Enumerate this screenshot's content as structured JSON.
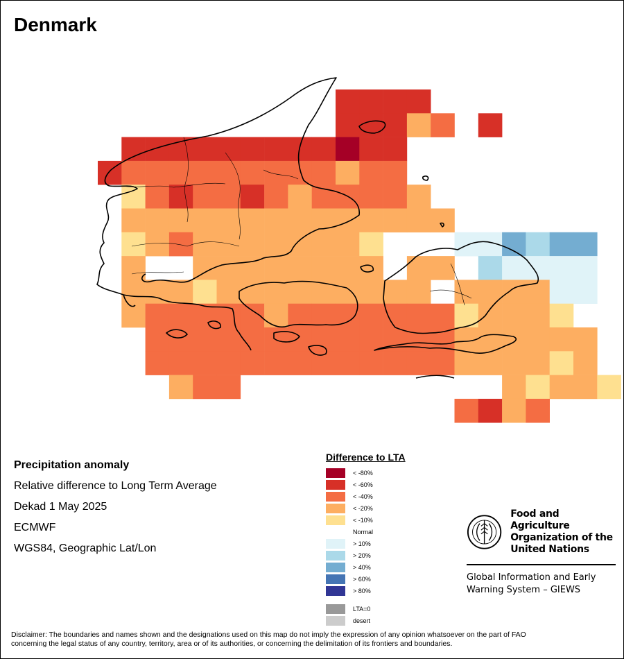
{
  "title": "Denmark",
  "info": {
    "heading": "Precipitation anomaly",
    "line1": "Relative difference to Long Term Average",
    "line2": "Dekad 1 May 2025",
    "line3": "ECMWF",
    "line4": "WGS84, Geographic Lat/Lon"
  },
  "legend": {
    "title": "Difference to LTA",
    "items": [
      {
        "label": "< -80%",
        "color": "#a50026"
      },
      {
        "label": "< -60%",
        "color": "#d73027"
      },
      {
        "label": "< -40%",
        "color": "#f46d43"
      },
      {
        "label": "< -20%",
        "color": "#fdae61"
      },
      {
        "label": "< -10%",
        "color": "#fee090"
      },
      {
        "label": "Normal",
        "color": "#ffffff"
      },
      {
        "label": "> 10%",
        "color": "#e0f3f8"
      },
      {
        "label": "> 20%",
        "color": "#abd9e9"
      },
      {
        "label": "> 40%",
        "color": "#74add1"
      },
      {
        "label": "> 60%",
        "color": "#4575b4"
      },
      {
        "label": "> 80%",
        "color": "#313695"
      }
    ],
    "extra": [
      {
        "label": "LTA=0",
        "color": "#999999"
      },
      {
        "label": "desert",
        "color": "#cccccc"
      }
    ]
  },
  "fao": {
    "name_line1": "Food and Agriculture",
    "name_line2": "Organization of the",
    "name_line3": "United Nations",
    "logo_text": "FAO",
    "motto": "FIAT PANIS",
    "giews_line1": "Global Information and Early",
    "giews_line2": "Warning System – GIEWS"
  },
  "disclaimer_line1": "Disclaimer: The boundaries and names shown and the designations used on this map do not imply the expression of any opinion whatsoever on the part of FAO",
  "disclaimer_line2": "concerning the legal status of any country, territory, area or of its authorities, or concerning the delimitation of its frontiers and boundaries.",
  "anomaly_grid": {
    "class_colors": {
      "r80": "#a50026",
      "r60": "#d73027",
      "r40": "#f46d43",
      "r20": "#fdae61",
      "r10": "#fee090",
      "p10": "#e0f3f8",
      "p20": "#abd9e9",
      "p40": "#74add1"
    },
    "cells": [
      [
        0,
        10,
        "r60"
      ],
      [
        0,
        11,
        "r60"
      ],
      [
        0,
        12,
        "r60"
      ],
      [
        0,
        13,
        "r60"
      ],
      [
        1,
        10,
        "r60"
      ],
      [
        1,
        11,
        "r60"
      ],
      [
        1,
        12,
        "r60"
      ],
      [
        1,
        13,
        "r20"
      ],
      [
        1,
        14,
        "r40"
      ],
      [
        1,
        16,
        "r60"
      ],
      [
        2,
        1,
        "r60"
      ],
      [
        2,
        2,
        "r60"
      ],
      [
        2,
        3,
        "r60"
      ],
      [
        2,
        4,
        "r60"
      ],
      [
        2,
        5,
        "r60"
      ],
      [
        2,
        6,
        "r60"
      ],
      [
        2,
        7,
        "r60"
      ],
      [
        2,
        8,
        "r60"
      ],
      [
        2,
        9,
        "r60"
      ],
      [
        2,
        10,
        "r80"
      ],
      [
        2,
        11,
        "r60"
      ],
      [
        2,
        12,
        "r60"
      ],
      [
        3,
        0,
        "r60"
      ],
      [
        3,
        1,
        "r40"
      ],
      [
        3,
        2,
        "r40"
      ],
      [
        3,
        3,
        "r40"
      ],
      [
        3,
        4,
        "r40"
      ],
      [
        3,
        5,
        "r40"
      ],
      [
        3,
        6,
        "r40"
      ],
      [
        3,
        7,
        "r40"
      ],
      [
        3,
        8,
        "r40"
      ],
      [
        3,
        9,
        "r40"
      ],
      [
        3,
        10,
        "r20"
      ],
      [
        3,
        11,
        "r40"
      ],
      [
        3,
        12,
        "r40"
      ],
      [
        4,
        1,
        "r10"
      ],
      [
        4,
        2,
        "r40"
      ],
      [
        4,
        3,
        "r60"
      ],
      [
        4,
        4,
        "r40"
      ],
      [
        4,
        5,
        "r40"
      ],
      [
        4,
        6,
        "r60"
      ],
      [
        4,
        7,
        "r40"
      ],
      [
        4,
        8,
        "r20"
      ],
      [
        4,
        9,
        "r40"
      ],
      [
        4,
        10,
        "r40"
      ],
      [
        4,
        11,
        "r40"
      ],
      [
        4,
        12,
        "r40"
      ],
      [
        4,
        13,
        "r20"
      ],
      [
        5,
        1,
        "r20"
      ],
      [
        5,
        2,
        "r20"
      ],
      [
        5,
        3,
        "r20"
      ],
      [
        5,
        4,
        "r20"
      ],
      [
        5,
        5,
        "r20"
      ],
      [
        5,
        6,
        "r20"
      ],
      [
        5,
        7,
        "r20"
      ],
      [
        5,
        8,
        "r20"
      ],
      [
        5,
        9,
        "r20"
      ],
      [
        5,
        10,
        "r20"
      ],
      [
        5,
        11,
        "r20"
      ],
      [
        5,
        12,
        "r20"
      ],
      [
        5,
        13,
        "r20"
      ],
      [
        5,
        14,
        "r20"
      ],
      [
        6,
        1,
        "r10"
      ],
      [
        6,
        2,
        "r20"
      ],
      [
        6,
        3,
        "r40"
      ],
      [
        6,
        4,
        "r20"
      ],
      [
        6,
        5,
        "r20"
      ],
      [
        6,
        6,
        "r20"
      ],
      [
        6,
        7,
        "r20"
      ],
      [
        6,
        8,
        "r20"
      ],
      [
        6,
        9,
        "r20"
      ],
      [
        6,
        10,
        "r20"
      ],
      [
        6,
        11,
        "r10"
      ],
      [
        6,
        15,
        "p10"
      ],
      [
        6,
        16,
        "p10"
      ],
      [
        6,
        17,
        "p40"
      ],
      [
        6,
        18,
        "p20"
      ],
      [
        6,
        19,
        "p40"
      ],
      [
        6,
        20,
        "p40"
      ],
      [
        7,
        1,
        "r20"
      ],
      [
        7,
        4,
        "r20"
      ],
      [
        7,
        5,
        "r20"
      ],
      [
        7,
        6,
        "r20"
      ],
      [
        7,
        7,
        "r20"
      ],
      [
        7,
        8,
        "r20"
      ],
      [
        7,
        9,
        "r20"
      ],
      [
        7,
        10,
        "r20"
      ],
      [
        7,
        11,
        "r20"
      ],
      [
        7,
        13,
        "r20"
      ],
      [
        7,
        14,
        "r20"
      ],
      [
        7,
        16,
        "p20"
      ],
      [
        7,
        17,
        "p10"
      ],
      [
        7,
        18,
        "p10"
      ],
      [
        7,
        19,
        "p10"
      ],
      [
        7,
        20,
        "p10"
      ],
      [
        8,
        1,
        "r20"
      ],
      [
        8,
        2,
        "r20"
      ],
      [
        8,
        3,
        "r20"
      ],
      [
        8,
        4,
        "r10"
      ],
      [
        8,
        5,
        "r20"
      ],
      [
        8,
        6,
        "r20"
      ],
      [
        8,
        7,
        "r20"
      ],
      [
        8,
        8,
        "r20"
      ],
      [
        8,
        9,
        "r20"
      ],
      [
        8,
        10,
        "r20"
      ],
      [
        8,
        11,
        "r20"
      ],
      [
        8,
        12,
        "r20"
      ],
      [
        8,
        13,
        "r20"
      ],
      [
        8,
        15,
        "r20"
      ],
      [
        8,
        16,
        "r20"
      ],
      [
        8,
        17,
        "r20"
      ],
      [
        8,
        18,
        "r20"
      ],
      [
        8,
        19,
        "p10"
      ],
      [
        8,
        20,
        "p10"
      ],
      [
        9,
        1,
        "r20"
      ],
      [
        9,
        2,
        "r40"
      ],
      [
        9,
        3,
        "r40"
      ],
      [
        9,
        4,
        "r40"
      ],
      [
        9,
        5,
        "r40"
      ],
      [
        9,
        6,
        "r40"
      ],
      [
        9,
        7,
        "r20"
      ],
      [
        9,
        8,
        "r40"
      ],
      [
        9,
        9,
        "r40"
      ],
      [
        9,
        10,
        "r40"
      ],
      [
        9,
        11,
        "r40"
      ],
      [
        9,
        12,
        "r40"
      ],
      [
        9,
        13,
        "r40"
      ],
      [
        9,
        14,
        "r40"
      ],
      [
        9,
        15,
        "r10"
      ],
      [
        9,
        16,
        "r20"
      ],
      [
        9,
        17,
        "r20"
      ],
      [
        9,
        18,
        "r20"
      ],
      [
        9,
        19,
        "r10"
      ],
      [
        10,
        2,
        "r40"
      ],
      [
        10,
        3,
        "r40"
      ],
      [
        10,
        4,
        "r40"
      ],
      [
        10,
        5,
        "r40"
      ],
      [
        10,
        6,
        "r40"
      ],
      [
        10,
        7,
        "r40"
      ],
      [
        10,
        8,
        "r40"
      ],
      [
        10,
        9,
        "r40"
      ],
      [
        10,
        10,
        "r40"
      ],
      [
        10,
        11,
        "r40"
      ],
      [
        10,
        12,
        "r40"
      ],
      [
        10,
        13,
        "r40"
      ],
      [
        10,
        14,
        "r40"
      ],
      [
        10,
        15,
        "r20"
      ],
      [
        10,
        16,
        "r20"
      ],
      [
        10,
        17,
        "r20"
      ],
      [
        10,
        18,
        "r20"
      ],
      [
        10,
        19,
        "r20"
      ],
      [
        10,
        20,
        "r20"
      ],
      [
        11,
        2,
        "r40"
      ],
      [
        11,
        3,
        "r40"
      ],
      [
        11,
        4,
        "r40"
      ],
      [
        11,
        5,
        "r40"
      ],
      [
        11,
        6,
        "r40"
      ],
      [
        11,
        7,
        "r40"
      ],
      [
        11,
        8,
        "r40"
      ],
      [
        11,
        9,
        "r40"
      ],
      [
        11,
        10,
        "r40"
      ],
      [
        11,
        11,
        "r40"
      ],
      [
        11,
        12,
        "r40"
      ],
      [
        11,
        13,
        "r40"
      ],
      [
        11,
        14,
        "r40"
      ],
      [
        11,
        15,
        "r20"
      ],
      [
        11,
        16,
        "r20"
      ],
      [
        11,
        17,
        "r20"
      ],
      [
        11,
        18,
        "r20"
      ],
      [
        11,
        19,
        "r10"
      ],
      [
        11,
        20,
        "r20"
      ],
      [
        12,
        3,
        "r20"
      ],
      [
        12,
        4,
        "r40"
      ],
      [
        12,
        5,
        "r40"
      ],
      [
        12,
        17,
        "r20"
      ],
      [
        12,
        18,
        "r10"
      ],
      [
        12,
        19,
        "r20"
      ],
      [
        12,
        20,
        "r20"
      ],
      [
        12,
        21,
        "r10"
      ],
      [
        13,
        15,
        "r40"
      ],
      [
        13,
        16,
        "r60"
      ],
      [
        13,
        17,
        "r20"
      ],
      [
        13,
        18,
        "r40"
      ]
    ]
  }
}
